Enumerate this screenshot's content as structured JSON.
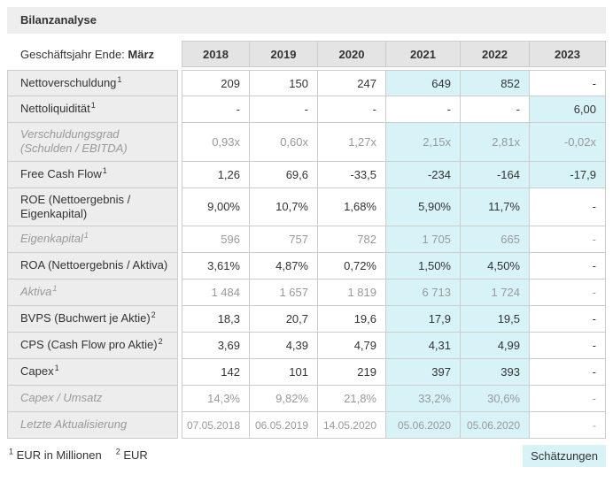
{
  "title": "Bilanzanalyse",
  "table": {
    "corner_label": "Geschäftsjahr Ende:",
    "corner_value": "März",
    "years": [
      "2018",
      "2019",
      "2020",
      "2021",
      "2022",
      "2023"
    ],
    "rows": [
      {
        "label": "Nettoverschuldung",
        "sup": "1",
        "style": "normal",
        "cells": [
          {
            "v": "209"
          },
          {
            "v": "150"
          },
          {
            "v": "247"
          },
          {
            "v": "649",
            "est": true
          },
          {
            "v": "852",
            "est": true
          },
          {
            "v": "-"
          }
        ]
      },
      {
        "label": "Nettoliquidität",
        "sup": "1",
        "style": "normal",
        "cells": [
          {
            "v": "-"
          },
          {
            "v": "-"
          },
          {
            "v": "-"
          },
          {
            "v": "-"
          },
          {
            "v": "-"
          },
          {
            "v": "6,00",
            "est": true
          }
        ]
      },
      {
        "label": "Verschuldungsgrad (Schulden / EBITDA)",
        "sup": "",
        "style": "italic",
        "cells": [
          {
            "v": "0,93x"
          },
          {
            "v": "0,60x"
          },
          {
            "v": "1,27x"
          },
          {
            "v": "2,15x",
            "est": true
          },
          {
            "v": "2,81x",
            "est": true
          },
          {
            "v": "-0,02x",
            "est": true
          }
        ]
      },
      {
        "label": "Free Cash Flow",
        "sup": "1",
        "style": "normal",
        "cells": [
          {
            "v": "1,26"
          },
          {
            "v": "69,6"
          },
          {
            "v": "-33,5"
          },
          {
            "v": "-234",
            "est": true
          },
          {
            "v": "-164",
            "est": true
          },
          {
            "v": "-17,9",
            "est": true
          }
        ]
      },
      {
        "label": "ROE (Nettoergebnis / Eigenkapital)",
        "sup": "",
        "style": "normal",
        "cells": [
          {
            "v": "9,00%"
          },
          {
            "v": "10,7%"
          },
          {
            "v": "1,68%"
          },
          {
            "v": "5,90%",
            "est": true
          },
          {
            "v": "11,7%",
            "est": true
          },
          {
            "v": "-"
          }
        ]
      },
      {
        "label": "Eigenkapital",
        "sup": "1",
        "style": "italic",
        "cells": [
          {
            "v": "596"
          },
          {
            "v": "757"
          },
          {
            "v": "782"
          },
          {
            "v": "1 705",
            "est": true
          },
          {
            "v": "665",
            "est": true
          },
          {
            "v": "-"
          }
        ]
      },
      {
        "label": "ROA (Nettoergebnis / Aktiva)",
        "sup": "",
        "style": "normal",
        "cells": [
          {
            "v": "3,61%"
          },
          {
            "v": "4,87%"
          },
          {
            "v": "0,72%"
          },
          {
            "v": "1,50%",
            "est": true
          },
          {
            "v": "4,50%",
            "est": true
          },
          {
            "v": "-"
          }
        ]
      },
      {
        "label": "Aktiva",
        "sup": "1",
        "style": "italic",
        "cells": [
          {
            "v": "1 484"
          },
          {
            "v": "1 657"
          },
          {
            "v": "1 819"
          },
          {
            "v": "6 713",
            "est": true
          },
          {
            "v": "1 724",
            "est": true
          },
          {
            "v": "-"
          }
        ]
      },
      {
        "label": "BVPS (Buchwert je Aktie)",
        "sup": "2",
        "style": "normal",
        "cells": [
          {
            "v": "18,3"
          },
          {
            "v": "20,7"
          },
          {
            "v": "19,6"
          },
          {
            "v": "17,9",
            "est": true
          },
          {
            "v": "19,5",
            "est": true
          },
          {
            "v": "-"
          }
        ]
      },
      {
        "label": "CPS (Cash Flow pro Aktie)",
        "sup": "2",
        "style": "normal",
        "cells": [
          {
            "v": "3,69"
          },
          {
            "v": "4,39"
          },
          {
            "v": "4,79"
          },
          {
            "v": "4,31",
            "est": true
          },
          {
            "v": "4,99",
            "est": true
          },
          {
            "v": "-"
          }
        ]
      },
      {
        "label": "Capex",
        "sup": "1",
        "style": "normal",
        "cells": [
          {
            "v": "142"
          },
          {
            "v": "101"
          },
          {
            "v": "219"
          },
          {
            "v": "397",
            "est": true
          },
          {
            "v": "393",
            "est": true
          },
          {
            "v": "-"
          }
        ]
      },
      {
        "label": "Capex / Umsatz",
        "sup": "",
        "style": "italic",
        "cells": [
          {
            "v": "14,3%"
          },
          {
            "v": "9,82%"
          },
          {
            "v": "21,8%"
          },
          {
            "v": "33,2%",
            "est": true
          },
          {
            "v": "30,6%",
            "est": true
          },
          {
            "v": "-"
          }
        ]
      },
      {
        "label": "Letzte Aktualisierung",
        "sup": "",
        "style": "italic",
        "date_row": true,
        "cells": [
          {
            "v": "07.05.2018"
          },
          {
            "v": "06.05.2019"
          },
          {
            "v": "14.05.2020"
          },
          {
            "v": "05.06.2020",
            "est": true
          },
          {
            "v": "05.06.2020",
            "est": true
          },
          {
            "v": "-"
          }
        ]
      }
    ]
  },
  "footnotes": [
    {
      "sup": "1",
      "text": "EUR in Millionen"
    },
    {
      "sup": "2",
      "text": "EUR"
    }
  ],
  "legend": {
    "estimates_label": "Schätzungen"
  },
  "colors": {
    "titlebar_bg": "#eeeeee",
    "label_bg": "#ededed",
    "header_bg": "#e4e4e4",
    "estimate_bg": "#d7f3f8",
    "border": "#cccccc",
    "text": "#333333",
    "muted": "#999999"
  }
}
